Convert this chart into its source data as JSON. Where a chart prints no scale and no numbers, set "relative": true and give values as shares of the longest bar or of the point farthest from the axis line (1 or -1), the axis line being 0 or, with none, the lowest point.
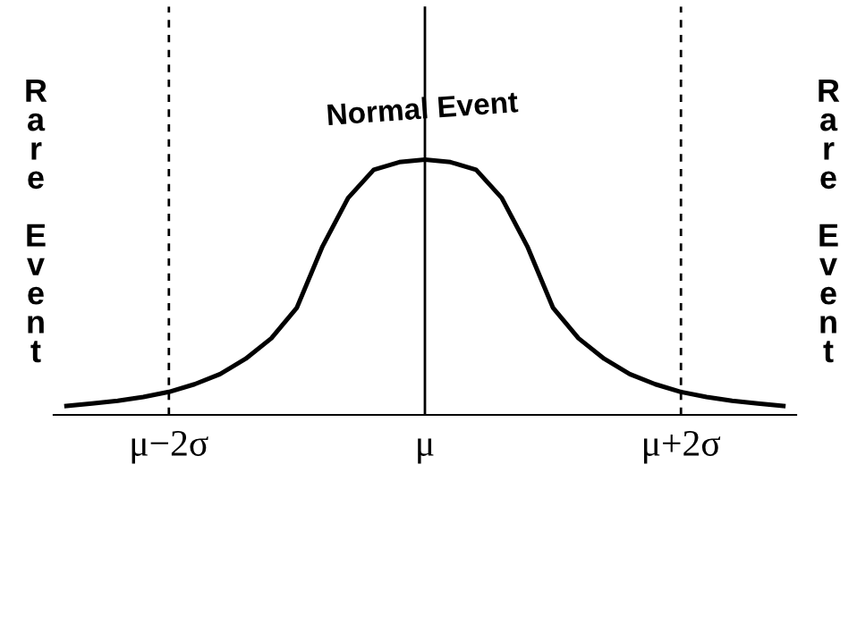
{
  "chart_data": {
    "type": "line",
    "relative": true,
    "categories": [
      null,
      null,
      null,
      null,
      "μ−2σ",
      null,
      null,
      null,
      null,
      null,
      null,
      null,
      null,
      null,
      "μ",
      null,
      null,
      null,
      null,
      null,
      null,
      null,
      null,
      null,
      "μ+2σ",
      null,
      null,
      null,
      null
    ],
    "series": [
      {
        "color": "#000000",
        "values": [
          0.035,
          0.045,
          0.055,
          0.07,
          0.09,
          0.12,
          0.16,
          0.22,
          0.3,
          0.42,
          0.66,
          0.85,
          0.96,
          0.99,
          1,
          0.99,
          0.96,
          0.85,
          0.66,
          0.42,
          0.3,
          0.22,
          0.16,
          0.12,
          0.09,
          0.07,
          0.055,
          0.045,
          0.035
        ]
      }
    ],
    "tick_labels": "x",
    "grid": false,
    "marker": "none",
    "line_style": "solid",
    "ref_lines": [
      {
        "axis": "x",
        "value": "μ−2σ",
        "line_style": "dashed",
        "color": "#000000"
      },
      {
        "axis": "x",
        "value": "μ",
        "line_style": "solid",
        "color": "#000000"
      },
      {
        "axis": "x",
        "value": "μ+2σ",
        "line_style": "dashed",
        "color": "#000000"
      }
    ],
    "annotations": [
      "Rare Event",
      "Normal Event",
      "Rare Event"
    ]
  }
}
